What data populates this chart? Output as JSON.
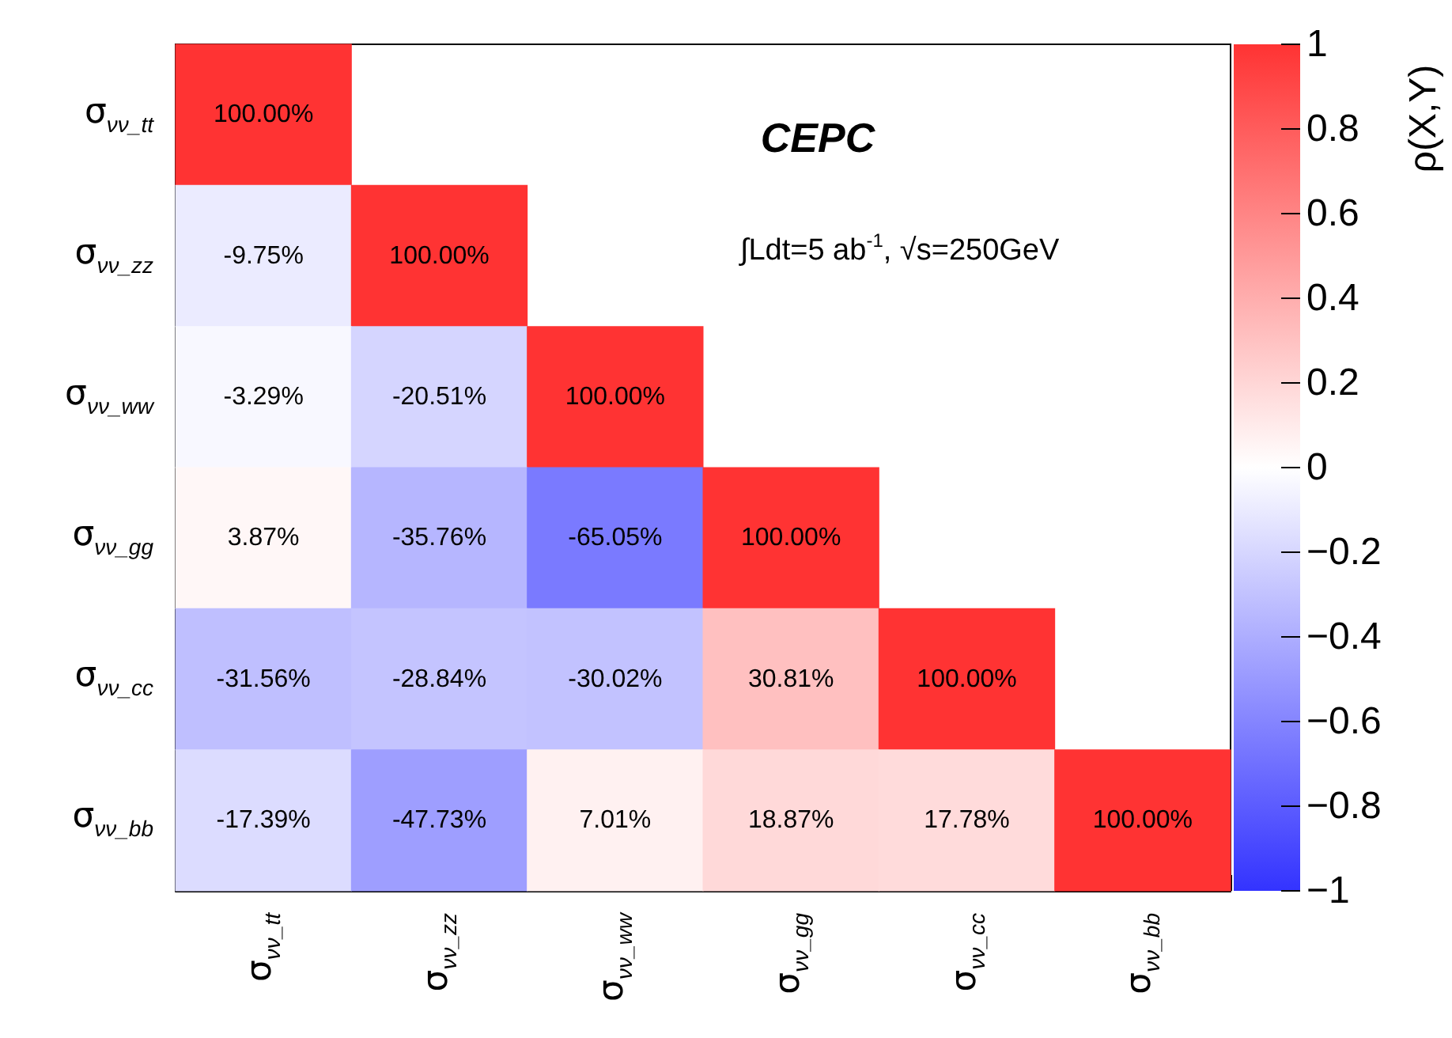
{
  "chart_data": {
    "type": "heatmap",
    "categories": [
      "σ$_{νν_tt}$",
      "σ$_{νν_zz}$",
      "σ$_{νν_ww}$",
      "σ$_{νν_gg}$",
      "σ$_{νν_cc}$",
      "σ$_{νν_bb}$"
    ],
    "y_categories": [
      "σ$_{νν_tt}$",
      "σ$_{νν_zz}$",
      "σ$_{νν_ww}$",
      "σ$_{νν_gg}$",
      "σ$_{νν_cc}$",
      "σ$_{νν_bb}$"
    ],
    "cells": [
      [
        1,
        null,
        null,
        null,
        null,
        null
      ],
      [
        -0.0975,
        1,
        null,
        null,
        null,
        null
      ],
      [
        -0.0329,
        -0.2051,
        1,
        null,
        null,
        null
      ],
      [
        0.0387,
        -0.3576,
        -0.6505,
        1,
        null,
        null
      ],
      [
        -0.3156,
        -0.2884,
        -0.3002,
        0.3081,
        1,
        null
      ],
      [
        -0.1739,
        -0.4773,
        0.0701,
        0.1887,
        0.1778,
        1
      ]
    ],
    "cell_labels": [
      [
        "100.00%",
        null,
        null,
        null,
        null,
        null
      ],
      [
        "-9.75%",
        "100.00%",
        null,
        null,
        null,
        null
      ],
      [
        "-3.29%",
        "-20.51%",
        "100.00%",
        null,
        null,
        null
      ],
      [
        "3.87%",
        "-35.76%",
        "-65.05%",
        "100.00%",
        null,
        null
      ],
      [
        "-31.56%",
        "-28.84%",
        "-30.02%",
        "30.81%",
        "100.00%",
        null
      ],
      [
        "-17.39%",
        "-47.73%",
        "7.01%",
        "18.87%",
        "17.78%",
        "100.00%"
      ]
    ],
    "clim": [
      -1,
      1
    ],
    "cticks": [
      {
        "value": -1,
        "label": "−1"
      },
      {
        "value": -0.8,
        "label": "−0.8"
      },
      {
        "value": -0.6,
        "label": "−0.6"
      },
      {
        "value": -0.4,
        "label": "−0.4"
      },
      {
        "value": -0.2,
        "label": "−0.2"
      },
      0,
      0.2,
      0.4,
      0.6,
      0.8,
      1
    ],
    "clabel": "ρ(X,Y)",
    "annotations": [
      "CEPC",
      "∫Ldt=5 ab$^{-1}$, √s=250GeV"
    ]
  }
}
